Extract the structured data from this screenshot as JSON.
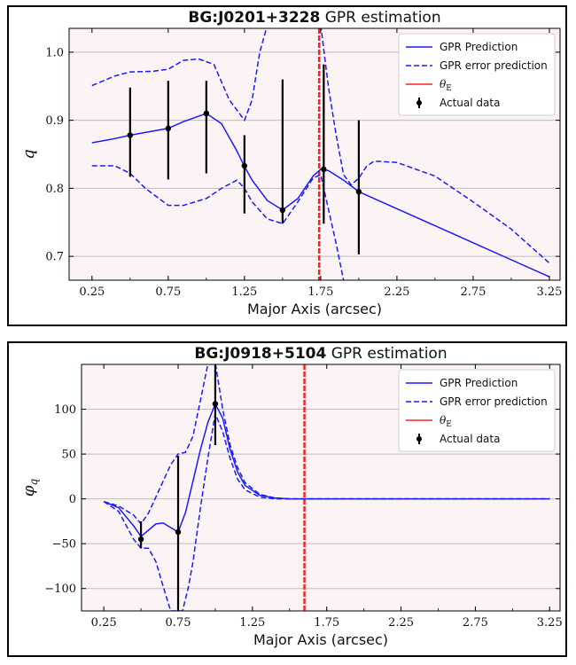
{
  "colors": {
    "prediction": "#1a1aff",
    "error": "#1a1aff",
    "theta": "#ff2020",
    "data": "#000000",
    "plot_background": "#fcf4f4",
    "grid": "#bdbdbd"
  },
  "legend_labels": {
    "prediction": "GPR Prediction",
    "error": "GPR error prediction",
    "theta_symbol": "θ",
    "theta_sub": "E",
    "data": "Actual data"
  },
  "chart_data": [
    {
      "type": "line",
      "title_bold": "BG:J0201+3228",
      "title_rest": " GPR estimation",
      "xlabel": "Major Axis (arcsec)",
      "ylabel": "q",
      "xlim": [
        0.1,
        3.32
      ],
      "ylim": [
        0.665,
        1.035
      ],
      "xticks": [
        0.25,
        0.75,
        1.25,
        1.75,
        2.25,
        2.75,
        3.25
      ],
      "xtick_labels": [
        "0.25",
        "0.75",
        "1.25",
        "1.75",
        "2.25",
        "2.75",
        "3.25"
      ],
      "yticks": [
        0.7,
        0.8,
        0.9,
        1.0
      ],
      "ytick_labels": [
        "0.7",
        "0.8",
        "0.9",
        "1.0"
      ],
      "grid": true,
      "legend_position": "top-right",
      "theta_E": 1.74,
      "series": [
        {
          "name": "GPR Prediction",
          "style": "solid",
          "x": [
            0.25,
            0.4,
            0.5,
            0.6,
            0.75,
            0.85,
            1.0,
            1.1,
            1.2,
            1.25,
            1.3,
            1.4,
            1.5,
            1.6,
            1.7,
            1.75,
            1.8,
            1.9,
            2.0,
            2.1,
            2.25,
            2.5,
            2.75,
            3.0,
            3.25
          ],
          "y": [
            0.867,
            0.873,
            0.878,
            0.882,
            0.888,
            0.898,
            0.91,
            0.895,
            0.855,
            0.832,
            0.812,
            0.782,
            0.768,
            0.785,
            0.818,
            0.828,
            0.826,
            0.812,
            0.795,
            0.785,
            0.77,
            0.745,
            0.72,
            0.695,
            0.67
          ]
        },
        {
          "name": "GPR error prediction",
          "style": "dashed",
          "x": [
            0.25,
            0.4,
            0.5,
            0.65,
            0.75,
            0.85,
            0.95,
            1.05,
            1.15,
            1.25,
            1.3,
            1.35,
            1.4
          ],
          "y": [
            0.951,
            0.965,
            0.971,
            0.972,
            0.975,
            0.988,
            0.99,
            0.982,
            0.93,
            0.9,
            0.93,
            1.0,
            1.04
          ]
        },
        {
          "name": "GPR error prediction",
          "style": "dashed",
          "x": [
            0.25,
            0.4,
            0.5,
            0.6,
            0.75,
            0.85,
            1.0,
            1.1,
            1.2,
            1.25,
            1.3,
            1.4,
            1.5,
            1.6,
            1.7,
            1.75,
            1.8,
            1.85,
            1.9
          ],
          "y": [
            0.833,
            0.833,
            0.822,
            0.8,
            0.775,
            0.775,
            0.785,
            0.8,
            0.812,
            0.8,
            0.78,
            0.755,
            0.748,
            0.78,
            0.815,
            0.82,
            0.77,
            0.72,
            0.665
          ]
        },
        {
          "name": "GPR error prediction",
          "style": "dashed",
          "x": [
            1.75,
            1.8,
            1.85,
            1.9,
            1.95,
            2.0,
            2.05,
            2.1,
            2.25,
            2.5,
            2.75,
            3.0,
            3.25
          ],
          "y": [
            1.04,
            0.95,
            0.88,
            0.82,
            0.805,
            0.815,
            0.832,
            0.84,
            0.838,
            0.818,
            0.78,
            0.74,
            0.69
          ]
        }
      ],
      "data_points": [
        {
          "x": 0.5,
          "y": 0.878,
          "ylow": 0.817,
          "yhigh": 0.948
        },
        {
          "x": 0.75,
          "y": 0.888,
          "ylow": 0.813,
          "yhigh": 0.958
        },
        {
          "x": 1.0,
          "y": 0.91,
          "ylow": 0.822,
          "yhigh": 0.958
        },
        {
          "x": 1.25,
          "y": 0.833,
          "ylow": 0.763,
          "yhigh": 0.878
        },
        {
          "x": 1.5,
          "y": 0.768,
          "ylow": 0.748,
          "yhigh": 0.96
        },
        {
          "x": 1.77,
          "y": 0.828,
          "ylow": 0.748,
          "yhigh": 0.982
        },
        {
          "x": 2.0,
          "y": 0.795,
          "ylow": 0.703,
          "yhigh": 0.9
        }
      ]
    },
    {
      "type": "line",
      "title_bold": "BG:J0918+5104",
      "title_rest": " GPR estimation",
      "xlabel": "Major Axis (arcsec)",
      "ylabel": "φ",
      "ylabel_sub": "q",
      "xlim": [
        0.1,
        3.32
      ],
      "ylim": [
        -125,
        150
      ],
      "xticks": [
        0.25,
        0.75,
        1.25,
        1.75,
        2.25,
        2.75,
        3.25
      ],
      "xtick_labels": [
        "0.25",
        "0.75",
        "1.25",
        "1.75",
        "2.25",
        "2.75",
        "3.25"
      ],
      "yticks": [
        -100,
        -50,
        0,
        50,
        100
      ],
      "ytick_labels": [
        "−100",
        "−50",
        "0",
        "50",
        "100"
      ],
      "grid": true,
      "legend_position": "top-right",
      "theta_E": 1.6,
      "series": [
        {
          "name": "GPR Prediction",
          "style": "solid",
          "x": [
            0.25,
            0.35,
            0.45,
            0.5,
            0.55,
            0.6,
            0.65,
            0.7,
            0.75,
            0.8,
            0.85,
            0.9,
            0.95,
            1.0,
            1.05,
            1.1,
            1.15,
            1.2,
            1.3,
            1.4,
            1.5,
            1.6,
            2.0,
            2.5,
            3.0,
            3.25
          ],
          "y": [
            -3,
            -10,
            -30,
            -42,
            -35,
            -28,
            -27,
            -32,
            -37,
            -15,
            20,
            55,
            85,
            106,
            90,
            55,
            30,
            15,
            4,
            1,
            0,
            0,
            0,
            0,
            0,
            0
          ]
        },
        {
          "name": "GPR error prediction",
          "style": "dashed",
          "x": [
            0.25,
            0.35,
            0.45,
            0.5,
            0.55,
            0.6,
            0.65,
            0.7,
            0.75,
            0.8,
            0.85,
            0.9,
            0.95,
            1.0,
            1.05,
            1.1,
            1.15,
            1.2,
            1.3,
            1.4,
            1.5,
            1.6,
            2.0,
            3.25
          ],
          "y": [
            -3,
            -8,
            -18,
            -28,
            -16,
            2,
            20,
            38,
            50,
            52,
            70,
            110,
            150,
            152,
            100,
            60,
            35,
            18,
            5,
            1,
            0,
            0,
            0,
            0
          ]
        },
        {
          "name": "GPR error prediction",
          "style": "dashed",
          "x": [
            0.25,
            0.35,
            0.45,
            0.5,
            0.55,
            0.6,
            0.65,
            0.7,
            0.72,
            0.78,
            0.82,
            0.85,
            0.9,
            0.95,
            1.0,
            1.05,
            1.1,
            1.15,
            1.2,
            1.3,
            1.4,
            1.5,
            1.6,
            2.0,
            3.25
          ],
          "y": [
            -3,
            -14,
            -45,
            -55,
            -55,
            -70,
            -98,
            -125,
            -125,
            -125,
            -98,
            -70,
            -10,
            45,
            95,
            75,
            45,
            22,
            10,
            2,
            0,
            0,
            0,
            0,
            0
          ]
        }
      ],
      "data_points": [
        {
          "x": 0.5,
          "y": -45,
          "ylow": -55,
          "yhigh": -25
        },
        {
          "x": 0.75,
          "y": -37,
          "ylow": -125,
          "yhigh": 48
        },
        {
          "x": 1.0,
          "y": 106,
          "ylow": 60,
          "yhigh": 150
        }
      ]
    }
  ]
}
